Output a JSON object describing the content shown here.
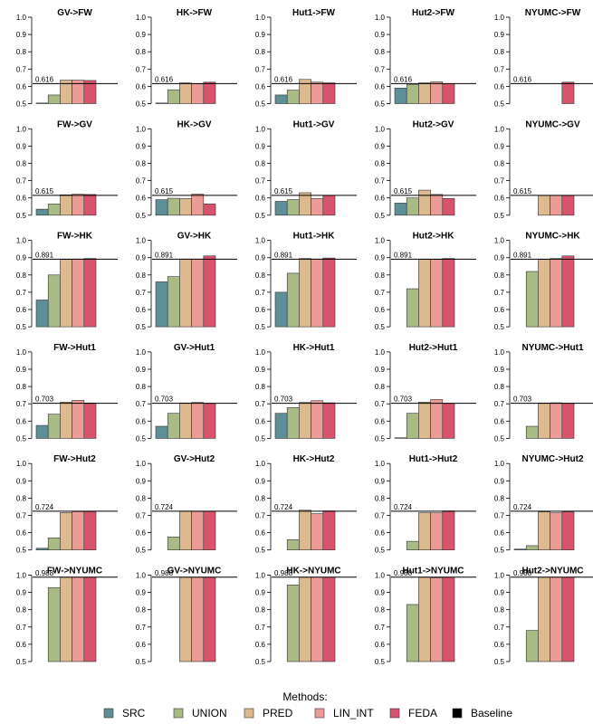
{
  "chart_data": {
    "type": "bar",
    "title": "",
    "ylim": [
      0.5,
      1.0
    ],
    "yticks": [
      "0.5",
      "0.6",
      "0.7",
      "0.8",
      "0.9",
      "1.0"
    ],
    "grid": false,
    "legend": {
      "title": "Methods:",
      "position": "bottom",
      "entries": [
        "SRC",
        "UNION",
        "PRED",
        "LIN_INT",
        "FEDA",
        "Baseline"
      ]
    },
    "colors": {
      "SRC": "#5f8f96",
      "UNION": "#a9bb84",
      "PRED": "#dcb98e",
      "LIN_INT": "#ec9c96",
      "FEDA": "#d8546d",
      "Baseline": "#000000"
    },
    "series_order": [
      "SRC",
      "UNION",
      "PRED",
      "LIN_INT",
      "FEDA"
    ],
    "panels": [
      {
        "title": "GV->FW",
        "baseline": 0.616,
        "baseline_label": "0.616",
        "values": [
          0.502,
          0.55,
          0.636,
          0.636,
          0.634
        ]
      },
      {
        "title": "HK->FW",
        "baseline": 0.616,
        "baseline_label": "0.616",
        "values": [
          0.5,
          0.58,
          0.62,
          0.614,
          0.624
        ]
      },
      {
        "title": "Hut1->FW",
        "baseline": 0.616,
        "baseline_label": "0.616",
        "values": [
          0.55,
          0.578,
          0.64,
          0.624,
          0.62
        ]
      },
      {
        "title": "Hut2->FW",
        "baseline": 0.616,
        "baseline_label": "0.616",
        "values": [
          0.59,
          0.61,
          0.62,
          0.626,
          0.616
        ]
      },
      {
        "title": "NYUMC->FW",
        "baseline": 0.616,
        "baseline_label": "0.616",
        "values": [
          null,
          null,
          null,
          null,
          0.624
        ]
      },
      {
        "title": "FW->GV",
        "baseline": 0.615,
        "baseline_label": "0.615",
        "values": [
          0.535,
          0.565,
          0.618,
          0.622,
          0.62
        ]
      },
      {
        "title": "HK->GV",
        "baseline": 0.615,
        "baseline_label": "0.615",
        "values": [
          0.59,
          0.598,
          0.596,
          0.622,
          0.565
        ]
      },
      {
        "title": "Hut1->GV",
        "baseline": 0.615,
        "baseline_label": "0.615",
        "values": [
          0.58,
          0.59,
          0.63,
          0.596,
          0.615
        ]
      },
      {
        "title": "Hut2->GV",
        "baseline": 0.615,
        "baseline_label": "0.615",
        "values": [
          0.57,
          0.6,
          0.645,
          0.62,
          0.597
        ]
      },
      {
        "title": "NYUMC->GV",
        "baseline": 0.615,
        "baseline_label": "0.615",
        "values": [
          null,
          null,
          0.615,
          0.615,
          0.615
        ]
      },
      {
        "title": "FW->HK",
        "baseline": 0.891,
        "baseline_label": "0.891",
        "values": [
          0.655,
          0.8,
          0.89,
          0.892,
          0.895
        ]
      },
      {
        "title": "GV->HK",
        "baseline": 0.891,
        "baseline_label": "0.891",
        "values": [
          0.76,
          0.79,
          0.892,
          0.892,
          0.91
        ]
      },
      {
        "title": "Hut1->HK",
        "baseline": 0.891,
        "baseline_label": "0.891",
        "values": [
          0.7,
          0.81,
          0.895,
          0.892,
          0.898
        ]
      },
      {
        "title": "Hut2->HK",
        "baseline": 0.891,
        "baseline_label": "0.891",
        "values": [
          null,
          0.72,
          0.89,
          0.89,
          0.895
        ]
      },
      {
        "title": "NYUMC->HK",
        "baseline": 0.891,
        "baseline_label": "0.891",
        "values": [
          null,
          0.82,
          0.89,
          0.895,
          0.91
        ]
      },
      {
        "title": "FW->Hut1",
        "baseline": 0.703,
        "baseline_label": "0.703",
        "values": [
          0.575,
          0.64,
          0.71,
          0.72,
          0.705
        ]
      },
      {
        "title": "GV->Hut1",
        "baseline": 0.703,
        "baseline_label": "0.703",
        "values": [
          0.57,
          0.645,
          0.705,
          0.708,
          0.702
        ]
      },
      {
        "title": "HK->Hut1",
        "baseline": 0.703,
        "baseline_label": "0.703",
        "values": [
          0.645,
          0.678,
          0.708,
          0.718,
          0.706
        ]
      },
      {
        "title": "Hut2->Hut1",
        "baseline": 0.703,
        "baseline_label": "0.703",
        "values": [
          0.5,
          0.645,
          0.71,
          0.725,
          0.702
        ]
      },
      {
        "title": "NYUMC->Hut1",
        "baseline": 0.703,
        "baseline_label": "0.703",
        "values": [
          null,
          0.57,
          0.705,
          0.706,
          0.703
        ]
      },
      {
        "title": "FW->Hut2",
        "baseline": 0.724,
        "baseline_label": "0.724",
        "values": [
          0.51,
          0.57,
          0.716,
          0.722,
          0.722
        ]
      },
      {
        "title": "GV->Hut2",
        "baseline": 0.724,
        "baseline_label": "0.724",
        "values": [
          null,
          0.575,
          0.725,
          0.723,
          0.724
        ]
      },
      {
        "title": "HK->Hut2",
        "baseline": 0.724,
        "baseline_label": "0.724",
        "values": [
          null,
          0.56,
          0.73,
          0.71,
          0.726
        ]
      },
      {
        "title": "Hut1->Hut2",
        "baseline": 0.724,
        "baseline_label": "0.724",
        "values": [
          null,
          0.55,
          0.715,
          0.715,
          0.726
        ]
      },
      {
        "title": "NYUMC->Hut2",
        "baseline": 0.724,
        "baseline_label": "0.724",
        "values": [
          0.505,
          0.525,
          0.72,
          0.715,
          0.72
        ]
      },
      {
        "title": "FW->NYUMC",
        "baseline": 0.988,
        "baseline_label": "0.988",
        "values": [
          null,
          0.928,
          0.988,
          0.988,
          0.988
        ]
      },
      {
        "title": "GV->NYUMC",
        "baseline": 0.988,
        "baseline_label": "0.988",
        "values": [
          null,
          null,
          0.988,
          0.988,
          0.988
        ]
      },
      {
        "title": "HK->NYUMC",
        "baseline": 0.988,
        "baseline_label": "0.988",
        "values": [
          null,
          0.943,
          0.988,
          0.988,
          0.988
        ]
      },
      {
        "title": "Hut1->NYUMC",
        "baseline": 0.988,
        "baseline_label": "0.988",
        "values": [
          null,
          0.83,
          0.988,
          0.985,
          0.988
        ]
      },
      {
        "title": "Hut2->NYUMC",
        "baseline": 0.988,
        "baseline_label": "0.988",
        "values": [
          null,
          0.68,
          0.988,
          0.988,
          0.988
        ]
      }
    ]
  }
}
